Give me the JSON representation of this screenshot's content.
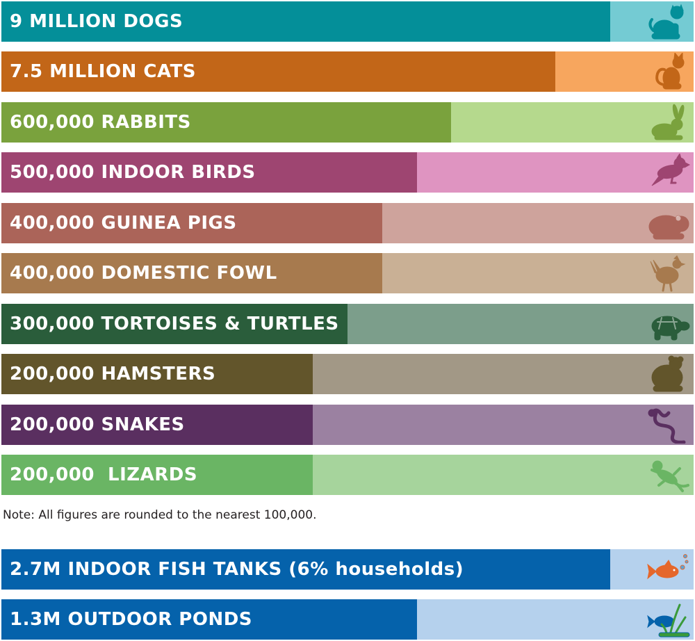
{
  "note": "Note: All figures are rounded to the nearest 100,000.",
  "chart_data": [
    {
      "type": "bar",
      "orientation": "horizontal",
      "value_unit": "animals",
      "categories": [
        "9 MILLION DOGS",
        "7.5 MILLION CATS",
        "600,000 RABBITS",
        "500,000 INDOOR BIRDS",
        "400,000 GUINEA PIGS",
        "400,000 DOMESTIC FOWL",
        "300,000 TORTOISES & TURTLES",
        "200,000 HAMSTERS",
        "200,000 SNAKES",
        "200,000  LIZARDS"
      ],
      "series": [
        {
          "values": [
            9000000,
            7500000,
            600000,
            500000,
            400000,
            400000,
            300000,
            200000,
            200000,
            200000
          ]
        }
      ],
      "bar_fraction": [
        0.88,
        0.8,
        0.65,
        0.6,
        0.55,
        0.55,
        0.5,
        0.45,
        0.45,
        0.45
      ],
      "bars": [
        {
          "label": "9 MILLION DOGS",
          "value": 9000000,
          "fraction": 0.88,
          "dark": "#048f99",
          "light": "#74cbd3",
          "icon": "dog-icon",
          "icon_color": "#048f99"
        },
        {
          "label": "7.5 MILLION CATS",
          "value": 7500000,
          "fraction": 0.8,
          "dark": "#c26618",
          "light": "#f7a65e",
          "icon": "cat-icon",
          "icon_color": "#c26618"
        },
        {
          "label": "600,000 RABBITS",
          "value": 600000,
          "fraction": 0.65,
          "dark": "#7aa23d",
          "light": "#b5d98d",
          "icon": "rabbit-icon",
          "icon_color": "#7aa23d"
        },
        {
          "label": "500,000 INDOOR BIRDS",
          "value": 500000,
          "fraction": 0.6,
          "dark": "#9e4571",
          "light": "#df94c1",
          "icon": "bird-icon",
          "icon_color": "#9e4571"
        },
        {
          "label": "400,000 GUINEA PIGS",
          "value": 400000,
          "fraction": 0.55,
          "dark": "#ab6459",
          "light": "#cea39c",
          "icon": "guinea-pig-icon",
          "icon_color": "#ab6459"
        },
        {
          "label": "400,000 DOMESTIC FOWL",
          "value": 400000,
          "fraction": 0.55,
          "dark": "#a77a4e",
          "light": "#c9b095",
          "icon": "chicken-icon",
          "icon_color": "#a77a4e"
        },
        {
          "label": "300,000 TORTOISES & TURTLES",
          "value": 300000,
          "fraction": 0.5,
          "dark": "#2a5d3b",
          "light": "#7c9e8b",
          "icon": "turtle-icon",
          "icon_color": "#2a5d3b"
        },
        {
          "label": "200,000 HAMSTERS",
          "value": 200000,
          "fraction": 0.45,
          "dark": "#62552b",
          "light": "#a29886",
          "icon": "hamster-icon",
          "icon_color": "#62552b"
        },
        {
          "label": "200,000 SNAKES",
          "value": 200000,
          "fraction": 0.45,
          "dark": "#5a2f60",
          "light": "#9b81a1",
          "icon": "snake-icon",
          "icon_color": "#5a2f60"
        },
        {
          "label": "200,000  LIZARDS",
          "value": 200000,
          "fraction": 0.45,
          "dark": "#6ab564",
          "light": "#a6d49c",
          "icon": "lizard-icon",
          "icon_color": "#6ab564"
        }
      ]
    },
    {
      "type": "bar",
      "orientation": "horizontal",
      "categories": [
        "2.7M INDOOR FISH TANKS (6% households)",
        "1.3M OUTDOOR PONDS"
      ],
      "series": [
        {
          "values": [
            2700000,
            1300000
          ]
        }
      ],
      "bar_fraction": [
        0.88,
        0.6
      ],
      "bars": [
        {
          "label": "2.7M INDOOR FISH TANKS (6% households)",
          "value": 2700000,
          "fraction": 0.88,
          "dark": "#0562ab",
          "light": "#b5d1ed",
          "icon": "fish-icon",
          "icon_color": "#e5672b"
        },
        {
          "label": "1.3M OUTDOOR PONDS",
          "value": 1300000,
          "fraction": 0.6,
          "dark": "#0562ab",
          "light": "#b5d1ed",
          "icon": "pond-icon",
          "icon_color": "#0562ab"
        }
      ]
    }
  ]
}
